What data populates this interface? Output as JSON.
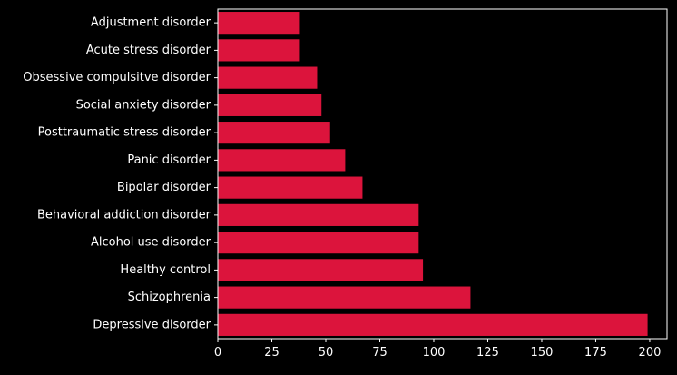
{
  "chart_data": {
    "type": "bar",
    "orientation": "horizontal",
    "categories": [
      "Depressive disorder",
      "Schizophrenia",
      "Healthy control",
      "Alcohol use disorder",
      "Behavioral addiction disorder",
      "Bipolar disorder",
      "Panic disorder",
      "Posttraumatic stress disorder",
      "Social anxiety disorder",
      "Obsessive compulsitve disorder",
      "Acute stress disorder",
      "Adjustment disorder"
    ],
    "values": [
      199,
      117,
      95,
      93,
      93,
      67,
      59,
      52,
      48,
      46,
      38,
      38
    ],
    "title": "",
    "xlabel": "",
    "ylabel": "",
    "xlim": [
      0,
      208
    ],
    "xticks": [
      0,
      25,
      50,
      75,
      100,
      125,
      150,
      175,
      200
    ],
    "grid": false,
    "colors": {
      "bar": "#dc143c",
      "background": "#000000",
      "axis": "#ffffff",
      "text": "#ffffff"
    }
  }
}
